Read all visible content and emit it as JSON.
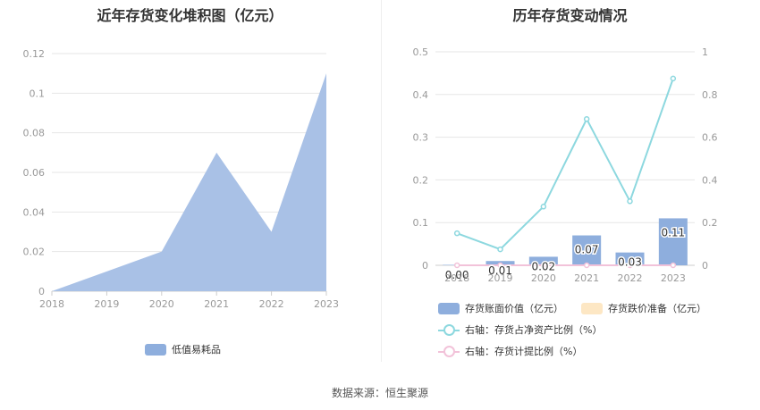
{
  "chart_data": [
    {
      "type": "area",
      "title": "近年存货变化堆积图（亿元）",
      "x": [
        "2018",
        "2019",
        "2020",
        "2021",
        "2022",
        "2023"
      ],
      "ylim": [
        0,
        0.12
      ],
      "yticks": [
        "0",
        "0.02",
        "0.04",
        "0.06",
        "0.08",
        "0.1",
        "0.12"
      ],
      "series": [
        {
          "name": "低值易耗品",
          "values": [
            0.0,
            0.01,
            0.02,
            0.07,
            0.03,
            0.11
          ],
          "color": "#a9c1e6"
        }
      ],
      "legend": "bottom"
    },
    {
      "type": "bar",
      "title": "历年存货变动情况",
      "x": [
        "2018",
        "2019",
        "2020",
        "2021",
        "2022",
        "2023"
      ],
      "ylim_left": [
        0,
        0.5
      ],
      "yticks_left": [
        "0",
        "0.1",
        "0.2",
        "0.3",
        "0.4",
        "0.5"
      ],
      "ylim_right": [
        0,
        1
      ],
      "yticks_right": [
        "0",
        "0.2",
        "0.4",
        "0.6",
        "0.8",
        "1"
      ],
      "bars": {
        "name": "存货账面价值（亿元）",
        "values": [
          0.0,
          0.01,
          0.02,
          0.07,
          0.03,
          0.11
        ],
        "labels": [
          "0.00",
          "0.01",
          "0.02",
          "0.07",
          "0.03",
          "0.11"
        ],
        "color": "#8eaedd"
      },
      "bars2": {
        "name": "存货跌价准备（亿元）",
        "values": [
          0,
          0,
          0,
          0,
          0,
          0
        ],
        "color": "#fde7c4"
      },
      "lines": [
        {
          "name": "右轴：存货占净资产比例（%）",
          "values": [
            0.15,
            0.075,
            0.275,
            0.685,
            0.3,
            0.875
          ],
          "color": "#8dd8df"
        },
        {
          "name": "右轴：存货计提比例（%）",
          "values": [
            0,
            0,
            0,
            0,
            0,
            0
          ],
          "color": "#f2c2d9"
        }
      ],
      "legend": "bottom"
    }
  ],
  "footer": "数据来源：恒生聚源"
}
